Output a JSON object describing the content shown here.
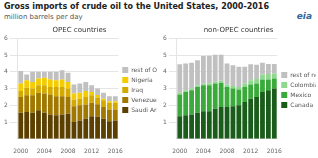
{
  "title": "Gross imports of crude oil to the United States, 2000-2016",
  "subtitle": "million barrels per day",
  "annotations": [
    "eia"
  ],
  "chart_data": [
    {
      "type": "bar",
      "title": "OPEC countries",
      "stacked": true,
      "grid": true,
      "legend": "right",
      "categories": [
        "2000",
        null,
        null,
        null,
        "2004",
        null,
        null,
        null,
        "2008",
        null,
        null,
        null,
        "2012",
        null,
        null,
        null,
        "2016"
      ],
      "ylim": [
        0,
        6
      ],
      "yticks": [
        1,
        2,
        3,
        4,
        5,
        6
      ],
      "series": [
        {
          "name": "Saudi Arabia",
          "color": "#5c4000",
          "values": [
            1.55,
            1.6,
            1.55,
            1.7,
            1.55,
            1.45,
            1.4,
            1.45,
            1.5,
            1.0,
            1.1,
            1.2,
            1.35,
            1.32,
            1.2,
            1.05,
            1.1
          ]
        },
        {
          "name": "Venezuela",
          "color": "#a07800",
          "values": [
            0.95,
            1.0,
            1.05,
            1.05,
            1.15,
            1.2,
            1.15,
            1.1,
            1.0,
            0.95,
            0.9,
            0.85,
            0.8,
            0.75,
            0.7,
            0.7,
            0.65
          ]
        },
        {
          "name": "Iraq",
          "color": "#d4aa00",
          "values": [
            0.35,
            0.45,
            0.4,
            0.45,
            0.5,
            0.45,
            0.55,
            0.55,
            0.5,
            0.4,
            0.4,
            0.45,
            0.45,
            0.4,
            0.4,
            0.4,
            0.4
          ]
        },
        {
          "name": "Nigeria",
          "color": "#f5cc00",
          "values": [
            0.45,
            0.45,
            0.4,
            0.4,
            0.45,
            0.45,
            0.4,
            0.45,
            0.4,
            0.35,
            0.35,
            0.35,
            0.2,
            0.15,
            0.1,
            0.1,
            0.1
          ]
        },
        {
          "name": "rest of OPEC",
          "color": "#c0c0c0",
          "values": [
            0.75,
            0.35,
            0.6,
            0.4,
            0.35,
            0.45,
            0.5,
            0.55,
            0.55,
            0.55,
            0.55,
            0.55,
            0.4,
            0.38,
            0.35,
            0.3,
            0.3
          ]
        }
      ]
    },
    {
      "type": "bar",
      "title": "non-OPEC countries",
      "stacked": true,
      "grid": true,
      "legend": "right",
      "categories": [
        "2000",
        null,
        null,
        null,
        "2004",
        null,
        null,
        null,
        "2008",
        null,
        null,
        null,
        "2012",
        null,
        null,
        null,
        "2016"
      ],
      "ylim": [
        0,
        6
      ],
      "yticks": [
        1,
        2,
        3,
        4,
        5,
        6
      ],
      "series": [
        {
          "name": "Canada",
          "color": "#1a5c1a",
          "values": [
            1.35,
            1.4,
            1.45,
            1.55,
            1.65,
            1.65,
            1.8,
            1.9,
            1.9,
            1.95,
            2.0,
            2.2,
            2.4,
            2.5,
            2.8,
            2.9,
            3.0
          ]
        },
        {
          "name": "Mexico",
          "color": "#3aaa3a",
          "values": [
            1.3,
            1.4,
            1.45,
            1.55,
            1.55,
            1.55,
            1.5,
            1.45,
            1.2,
            1.05,
            0.95,
            0.9,
            0.85,
            0.8,
            0.75,
            0.65,
            0.6
          ]
        },
        {
          "name": "Colombia",
          "color": "#90d890",
          "values": [
            0.1,
            0.1,
            0.1,
            0.1,
            0.1,
            0.12,
            0.12,
            0.12,
            0.15,
            0.15,
            0.15,
            0.2,
            0.25,
            0.28,
            0.3,
            0.32,
            0.3
          ]
        },
        {
          "name": "rest of non-OPEC",
          "color": "#c0c0c0",
          "values": [
            1.7,
            1.6,
            1.55,
            1.5,
            1.65,
            1.65,
            1.6,
            1.55,
            1.25,
            1.25,
            1.2,
            1.0,
            0.95,
            0.85,
            0.7,
            0.6,
            0.57
          ]
        }
      ]
    }
  ]
}
